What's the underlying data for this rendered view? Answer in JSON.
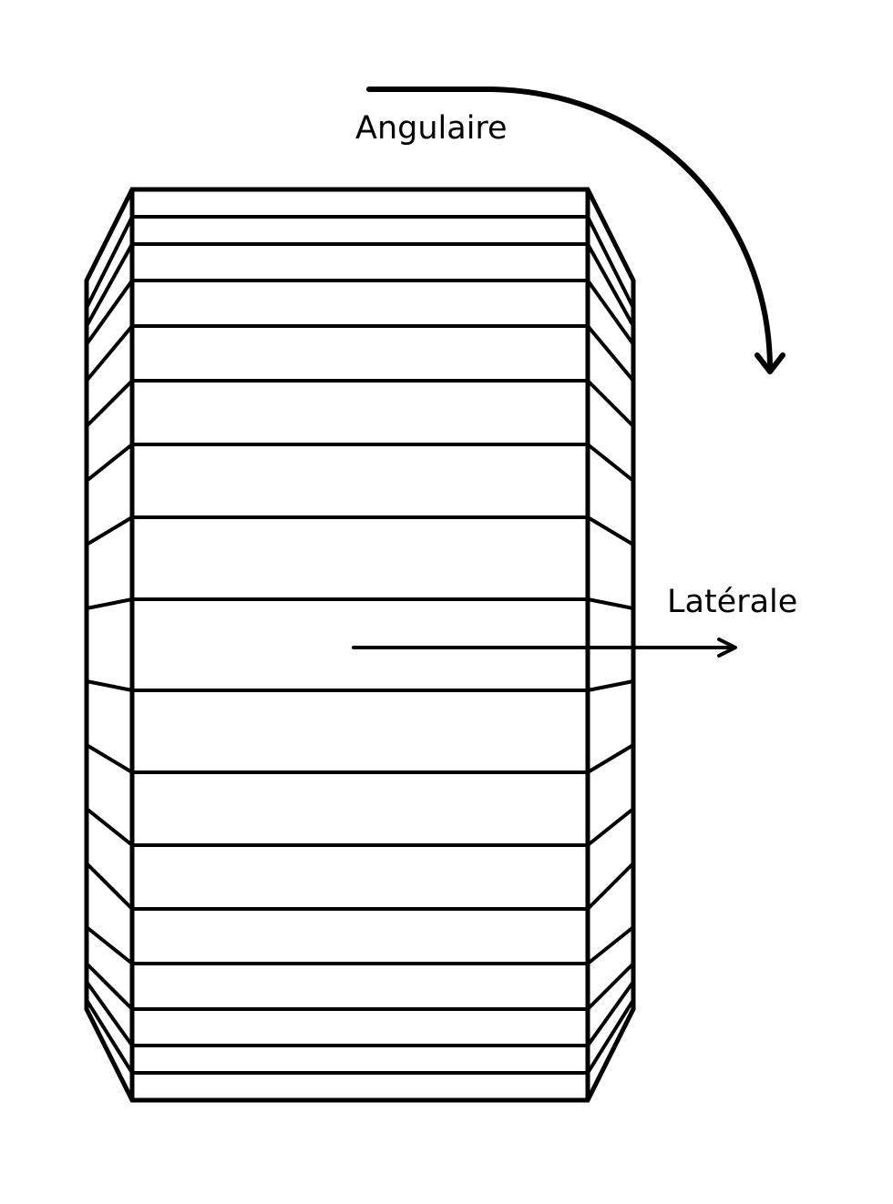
{
  "labels": {
    "angular": "Angulaire",
    "lateral": "Latérale"
  },
  "colors": {
    "stroke": "#000000",
    "background": "#ffffff"
  },
  "elements": {
    "angular_arrow": "curved-arrow",
    "lateral_arrow": "straight-arrow"
  }
}
